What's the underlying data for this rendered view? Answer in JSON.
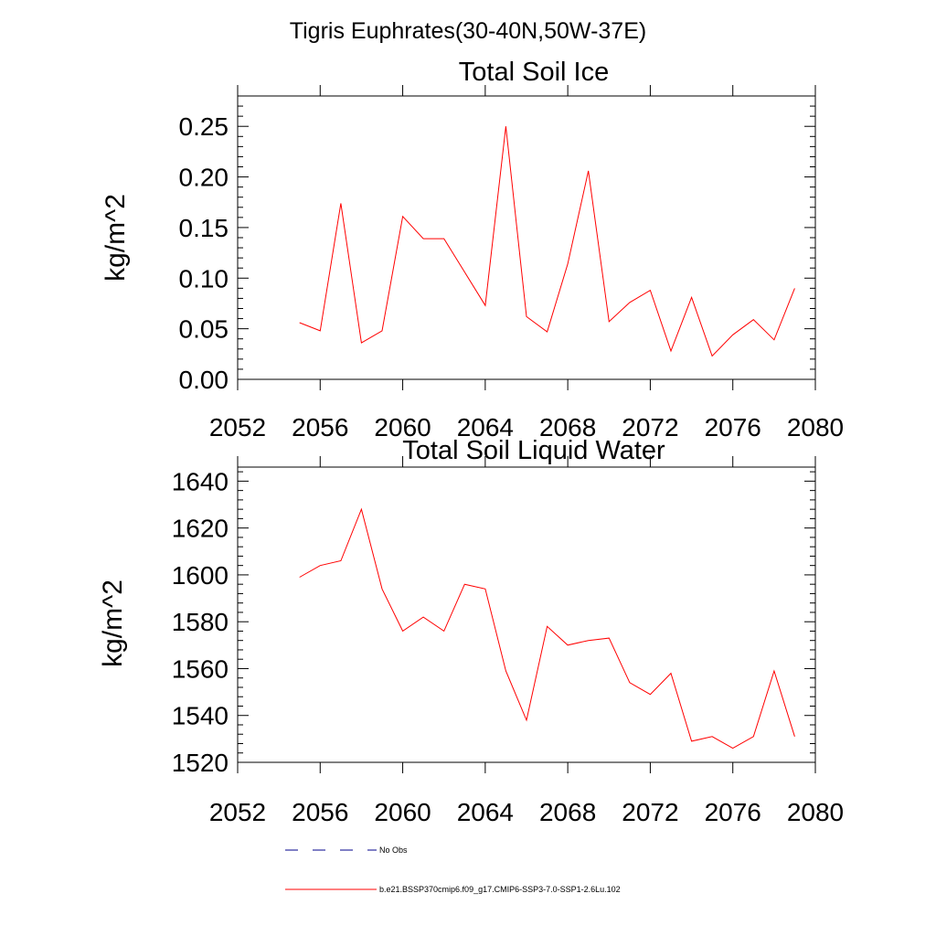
{
  "figure_title": "Tigris Euphrates(30-40N,50W-37E)",
  "chart_data": [
    {
      "type": "line",
      "title": "Total Soil Ice",
      "xlabel": "",
      "ylabel": "kg/m^2",
      "xlim": [
        2052,
        2080
      ],
      "ylim": [
        0,
        0.28
      ],
      "xticks": [
        2052,
        2056,
        2060,
        2064,
        2068,
        2072,
        2076,
        2080
      ],
      "xtick_labels": [
        "2052",
        "2056",
        "2060",
        "2064",
        "2068",
        "2072",
        "2076",
        "2080"
      ],
      "yticks": [
        0,
        0.05,
        0.1,
        0.15,
        0.2,
        0.25
      ],
      "ytick_labels": [
        "0.00",
        "0.05",
        "0.10",
        "0.15",
        "0.20",
        "0.25"
      ],
      "series": [
        {
          "name": "b.e21.BSSP370cmip6.f09_g17.CMIP6-SSP3-7.0-SSP1-2.6Lu.102",
          "color": "#ff0000",
          "x": [
            2055,
            2056,
            2057,
            2058,
            2059,
            2060,
            2061,
            2062,
            2063,
            2064,
            2065,
            2066,
            2067,
            2068,
            2069,
            2070,
            2071,
            2072,
            2073,
            2074,
            2075,
            2076,
            2077,
            2078,
            2079
          ],
          "y": [
            0.056,
            0.048,
            0.174,
            0.036,
            0.048,
            0.161,
            0.139,
            0.139,
            0.106,
            0.073,
            0.25,
            0.062,
            0.047,
            0.114,
            0.206,
            0.057,
            0.076,
            0.088,
            0.028,
            0.081,
            0.023,
            0.044,
            0.059,
            0.039,
            0.09
          ]
        }
      ]
    },
    {
      "type": "line",
      "title": "Total Soil Liquid Water",
      "xlabel": "",
      "ylabel": "kg/m^2",
      "xlim": [
        2052,
        2080
      ],
      "ylim": [
        1520,
        1646
      ],
      "xticks": [
        2052,
        2056,
        2060,
        2064,
        2068,
        2072,
        2076,
        2080
      ],
      "xtick_labels": [
        "2052",
        "2056",
        "2060",
        "2064",
        "2068",
        "2072",
        "2076",
        "2080"
      ],
      "yticks": [
        1520,
        1540,
        1560,
        1580,
        1600,
        1620,
        1640
      ],
      "ytick_labels": [
        "1520",
        "1540",
        "1560",
        "1580",
        "1600",
        "1620",
        "1640"
      ],
      "series": [
        {
          "name": "b.e21.BSSP370cmip6.f09_g17.CMIP6-SSP3-7.0-SSP1-2.6Lu.102",
          "color": "#ff0000",
          "x": [
            2055,
            2056,
            2057,
            2058,
            2059,
            2060,
            2061,
            2062,
            2063,
            2064,
            2065,
            2066,
            2067,
            2068,
            2069,
            2070,
            2071,
            2072,
            2073,
            2074,
            2075,
            2076,
            2077,
            2078,
            2079
          ],
          "y": [
            1599,
            1604,
            1606,
            1628,
            1594,
            1576,
            1582,
            1576,
            1596,
            1594,
            1559,
            1538,
            1578,
            1570,
            1572,
            1573,
            1554,
            1549,
            1558,
            1529,
            1531,
            1526,
            1531,
            1559,
            1531
          ]
        }
      ]
    }
  ],
  "legend": {
    "placement": "bottom-center",
    "items": [
      {
        "label": "No Obs",
        "color": "#00008b",
        "style": "dashed"
      },
      {
        "label": "b.e21.BSSP370cmip6.f09_g17.CMIP6-SSP3-7.0-SSP1-2.6Lu.102",
        "color": "#ff0000",
        "style": "solid"
      }
    ]
  }
}
